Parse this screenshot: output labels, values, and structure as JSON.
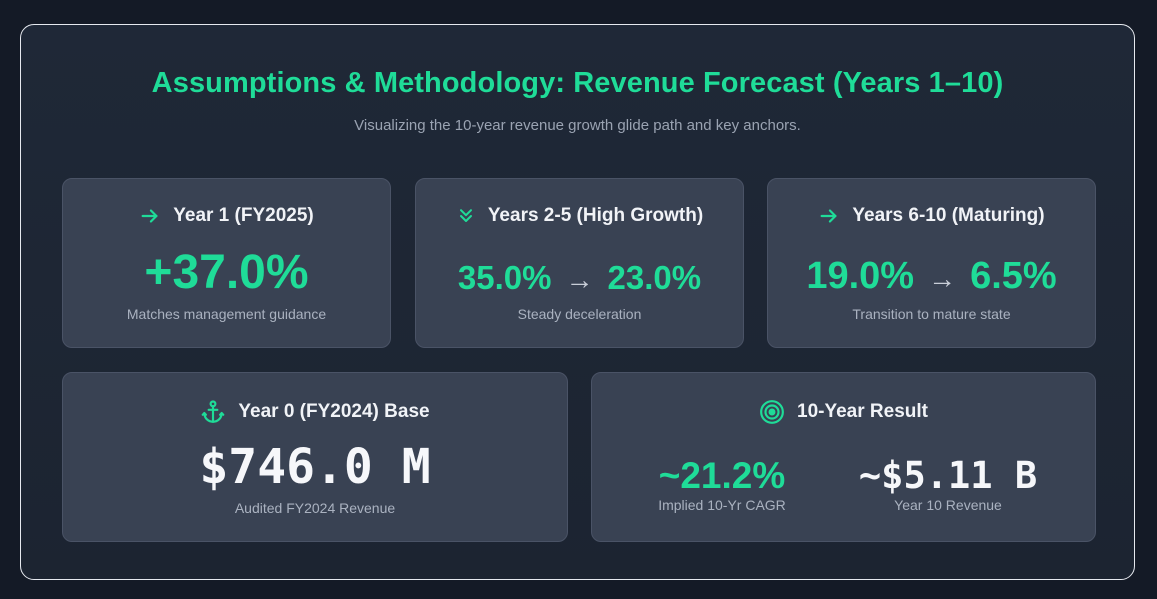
{
  "header": {
    "title": "Assumptions & Methodology: Revenue Forecast (Years 1–10)",
    "subtitle": "Visualizing the 10-year revenue growth glide path and key anchors."
  },
  "cards": {
    "year1": {
      "icon": "arrow-right-icon",
      "title": "Year 1 (FY2025)",
      "value": "+37.0%",
      "note": "Matches management guidance"
    },
    "years2to5": {
      "icon": "double-chevron-down-icon",
      "title": "Years 2-5 (High Growth)",
      "from": "35.0%",
      "arrow": "→",
      "to": "23.0%",
      "note": "Steady deceleration"
    },
    "years6to10": {
      "icon": "arrow-right-icon",
      "title": "Years 6-10 (Maturing)",
      "from": "19.0%",
      "arrow": "→",
      "to": "6.5%",
      "note": "Transition to mature state"
    },
    "year0": {
      "icon": "anchor-icon",
      "title": "Year 0 (FY2024) Base",
      "value": "$746.0 M",
      "note": "Audited FY2024 Revenue"
    },
    "result": {
      "icon": "target-icon",
      "title": "10-Year Result",
      "cagr_value": "~21.2%",
      "cagr_label": "Implied 10-Yr CAGR",
      "revenue_value": "~$5.11 B",
      "revenue_label": "Year 10 Revenue"
    }
  },
  "colors": {
    "accent": "#1fdc98",
    "background": "#141a26",
    "card": "#394253",
    "text": "#f1f3f7",
    "muted": "#aab2c0"
  }
}
